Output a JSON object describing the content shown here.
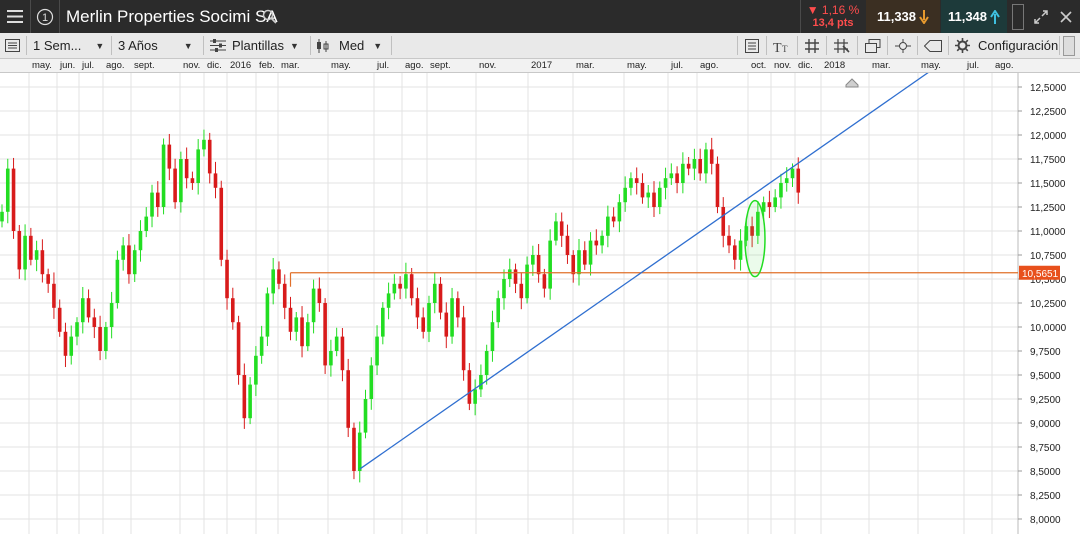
{
  "header": {
    "title": "Merlin Properties Socimi SA",
    "change_pct": "▼ 1,16 %",
    "change_pts": "13,4 pts",
    "sell_price": "11,338",
    "buy_price": "11,348"
  },
  "toolbar": {
    "interval": "1 Sem...",
    "range": "3 Años",
    "templates": "Plantillas",
    "chart_style": "Med",
    "config": "Configuración"
  },
  "colors": {
    "bull": "#22dd22",
    "bear": "#d81b1b",
    "trendline": "#2f6fd0",
    "support": "#e0702a",
    "price_tag": "#e8501c"
  },
  "months": [
    "may.",
    "jun.",
    "jul.",
    "ago.",
    "sept.",
    "nov.",
    "dic.",
    "2016",
    "feb.",
    "mar.",
    "may.",
    "jul.",
    "ago.",
    "sept.",
    "nov.",
    "2017",
    "mar.",
    "may.",
    "jul.",
    "ago.",
    "oct.",
    "nov.",
    "dic.",
    "2018",
    "mar.",
    "may.",
    "jul.",
    "ago."
  ],
  "chart_data": {
    "type": "candlestick",
    "title": "Merlin Properties Socimi SA",
    "ylim": [
      8.0,
      12.6
    ],
    "yticks": [
      "12,5000",
      "12,2500",
      "12,0000",
      "11,7500",
      "11,5000",
      "11,2500",
      "11,0000",
      "10,7500",
      "10,5000",
      "10,2500",
      "10,0000",
      "9,7500",
      "9,5000",
      "9,2500",
      "9,0000",
      "8,7500",
      "8,5000",
      "8,2500",
      "8,0000"
    ],
    "current_price_label": "10,5651",
    "support_level": 10.5651,
    "closes": [
      11.2,
      11.65,
      11.0,
      10.6,
      10.95,
      10.7,
      10.8,
      10.55,
      10.45,
      10.2,
      9.95,
      9.7,
      9.9,
      10.05,
      10.3,
      10.1,
      10.0,
      9.75,
      10.0,
      10.25,
      10.7,
      10.85,
      10.55,
      10.8,
      11.0,
      11.15,
      11.4,
      11.25,
      11.9,
      11.65,
      11.3,
      11.75,
      11.55,
      11.5,
      11.85,
      11.95,
      11.6,
      11.45,
      10.7,
      10.3,
      10.05,
      9.5,
      9.05,
      9.4,
      9.7,
      9.9,
      10.35,
      10.6,
      10.45,
      10.2,
      9.95,
      10.1,
      9.8,
      10.05,
      10.4,
      10.25,
      9.6,
      9.75,
      9.9,
      9.55,
      8.95,
      8.5,
      8.9,
      9.25,
      9.6,
      9.9,
      10.2,
      10.35,
      10.45,
      10.4,
      10.55,
      10.3,
      10.1,
      9.95,
      10.25,
      10.45,
      10.15,
      9.9,
      10.3,
      10.1,
      9.55,
      9.2,
      9.35,
      9.5,
      9.75,
      10.05,
      10.3,
      10.5,
      10.6,
      10.45,
      10.3,
      10.65,
      10.75,
      10.55,
      10.4,
      10.9,
      11.1,
      10.95,
      10.75,
      10.55,
      10.8,
      10.65,
      10.9,
      10.85,
      10.95,
      11.15,
      11.1,
      11.3,
      11.45,
      11.55,
      11.5,
      11.35,
      11.4,
      11.25,
      11.45,
      11.55,
      11.6,
      11.5,
      11.7,
      11.65,
      11.75,
      11.6,
      11.85,
      11.7,
      11.25,
      10.95,
      10.85,
      10.7,
      10.9,
      11.05,
      10.95,
      11.2,
      11.3,
      11.25,
      11.35,
      11.5,
      11.55,
      11.65,
      11.4
    ],
    "trendline": {
      "start": {
        "x": 62,
        "y": 8.52
      },
      "end": {
        "x": 145,
        "y": 12.0
      }
    },
    "highlight_ellipse": {
      "x": 130.5,
      "y": 10.92
    }
  }
}
